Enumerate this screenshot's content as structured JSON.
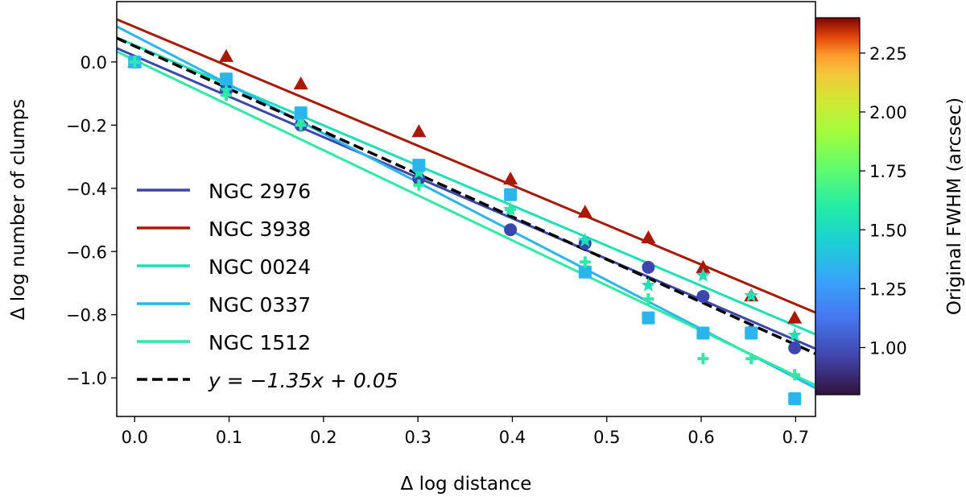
{
  "chart_data": {
    "type": "scatter",
    "xlabel": "Δ log distance",
    "ylabel": "Δ log number of clumps",
    "xlim": [
      -0.019,
      0.721
    ],
    "ylim": [
      -1.122,
      0.191
    ],
    "xticks": [
      "0.0",
      "0.1",
      "0.2",
      "0.3",
      "0.4",
      "0.5",
      "0.6",
      "0.7"
    ],
    "yticks": [
      "0.0",
      "−0.2",
      "−0.4",
      "−0.6",
      "−0.8",
      "−1.0"
    ],
    "grid": false,
    "legend": "lower-left",
    "x": [
      0,
      0.097,
      0.176,
      0.301,
      0.398,
      0.477,
      0.544,
      0.602,
      0.653,
      0.699
    ],
    "series": [
      {
        "name": "NGC 2976",
        "marker": "circle",
        "color": "#3b47ad",
        "fwhm": 0.9,
        "fit": {
          "slope": -1.285,
          "intercept": 0.019
        },
        "values": [
          0,
          -0.09,
          -0.2,
          -0.37,
          -0.531,
          -0.574,
          -0.65,
          -0.742,
          -0.855,
          -0.905
        ]
      },
      {
        "name": "NGC 3938",
        "marker": "triangle",
        "color": "#a81a05",
        "fwhm": 2.35,
        "fit": {
          "slope": -1.254,
          "intercept": 0.111
        },
        "values": [
          0,
          0.018,
          -0.069,
          -0.22,
          -0.37,
          -0.475,
          -0.556,
          -0.65,
          -0.74,
          -0.81
        ]
      },
      {
        "name": "NGC 0024",
        "marker": "star",
        "color": "#1fe0b5",
        "fwhm": 1.3,
        "fit": {
          "slope": -1.269,
          "intercept": 0.053
        },
        "values": [
          0,
          -0.09,
          -0.18,
          -0.35,
          -0.467,
          -0.565,
          -0.707,
          -0.676,
          -0.74,
          -0.865
        ]
      },
      {
        "name": "NGC 0337",
        "marker": "square",
        "color": "#2ab6ec",
        "fwhm": 1.2,
        "fit": {
          "slope": -1.547,
          "intercept": 0.083
        },
        "values": [
          0,
          -0.054,
          -0.161,
          -0.327,
          -0.42,
          -0.665,
          -0.81,
          -0.858,
          -0.858,
          -1.066
        ]
      },
      {
        "name": "NGC 1512",
        "marker": "plus",
        "color": "#2eeaa5",
        "fwhm": 1.4,
        "fit": {
          "slope": -1.427,
          "intercept": 0.006
        },
        "values": [
          0,
          -0.105,
          -0.2,
          -0.39,
          -0.467,
          -0.633,
          -0.75,
          -0.939,
          -0.939,
          -0.99
        ]
      }
    ],
    "reference_line": {
      "label": "y = −1.35x + 0.05",
      "slope": -1.35,
      "intercept": 0.05,
      "style": "dashed",
      "color": "#000000"
    },
    "colorbar": {
      "label": "Original FWHM (arcsec)",
      "colormap": "turbo",
      "range": [
        0.8,
        2.4
      ],
      "ticks": [
        "1.00",
        "1.25",
        "1.50",
        "1.75",
        "2.00",
        "2.25"
      ]
    }
  }
}
